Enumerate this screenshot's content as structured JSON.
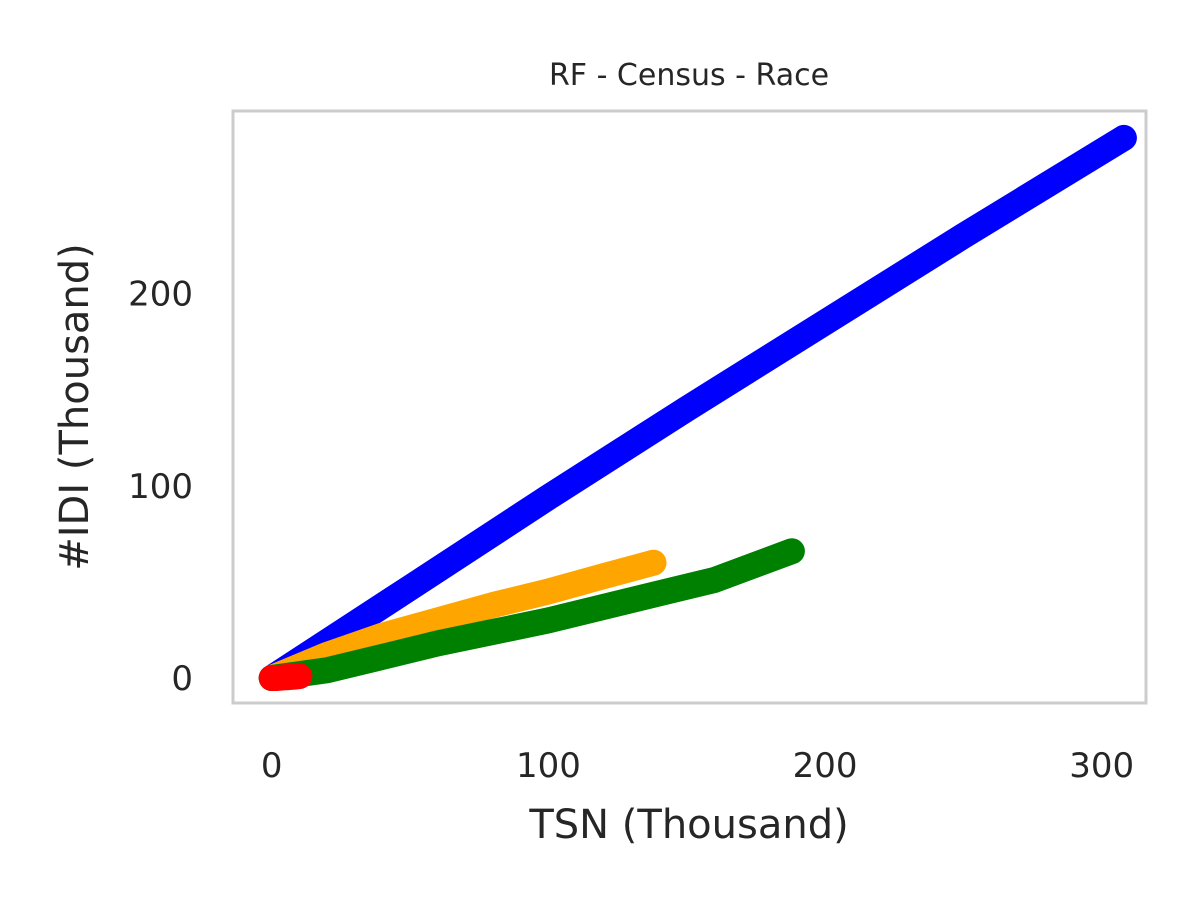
{
  "chart_data": {
    "type": "line",
    "title": "RF - Census - Race",
    "xlabel": "TSN (Thousand)",
    "ylabel": "#IDI (Thousand)",
    "xlim": [
      -14,
      316
    ],
    "ylim": [
      -13,
      295
    ],
    "xticks": [
      0,
      100,
      200,
      300
    ],
    "yticks": [
      0,
      100,
      200
    ],
    "grid": false,
    "legend": "none",
    "series": [
      {
        "color": "#0000ff",
        "x": [
          0,
          50,
          100,
          150,
          200,
          250,
          308
        ],
        "y": [
          0,
          47,
          94,
          140,
          185,
          230,
          281
        ]
      },
      {
        "color": "#ffa500",
        "x": [
          0,
          20,
          40,
          60,
          80,
          100,
          120,
          138
        ],
        "y": [
          0,
          12,
          22,
          30,
          38,
          45,
          53,
          60
        ]
      },
      {
        "color": "#008000",
        "x": [
          0,
          20,
          40,
          60,
          80,
          100,
          120,
          140,
          160,
          188
        ],
        "y": [
          0,
          4,
          11,
          18,
          24,
          30,
          37,
          44,
          51,
          66
        ]
      },
      {
        "color": "#ff0000",
        "x": [
          0,
          2,
          4,
          6,
          8,
          10
        ],
        "y": [
          0,
          0,
          0.3,
          0.5,
          0.7,
          1
        ]
      }
    ]
  }
}
